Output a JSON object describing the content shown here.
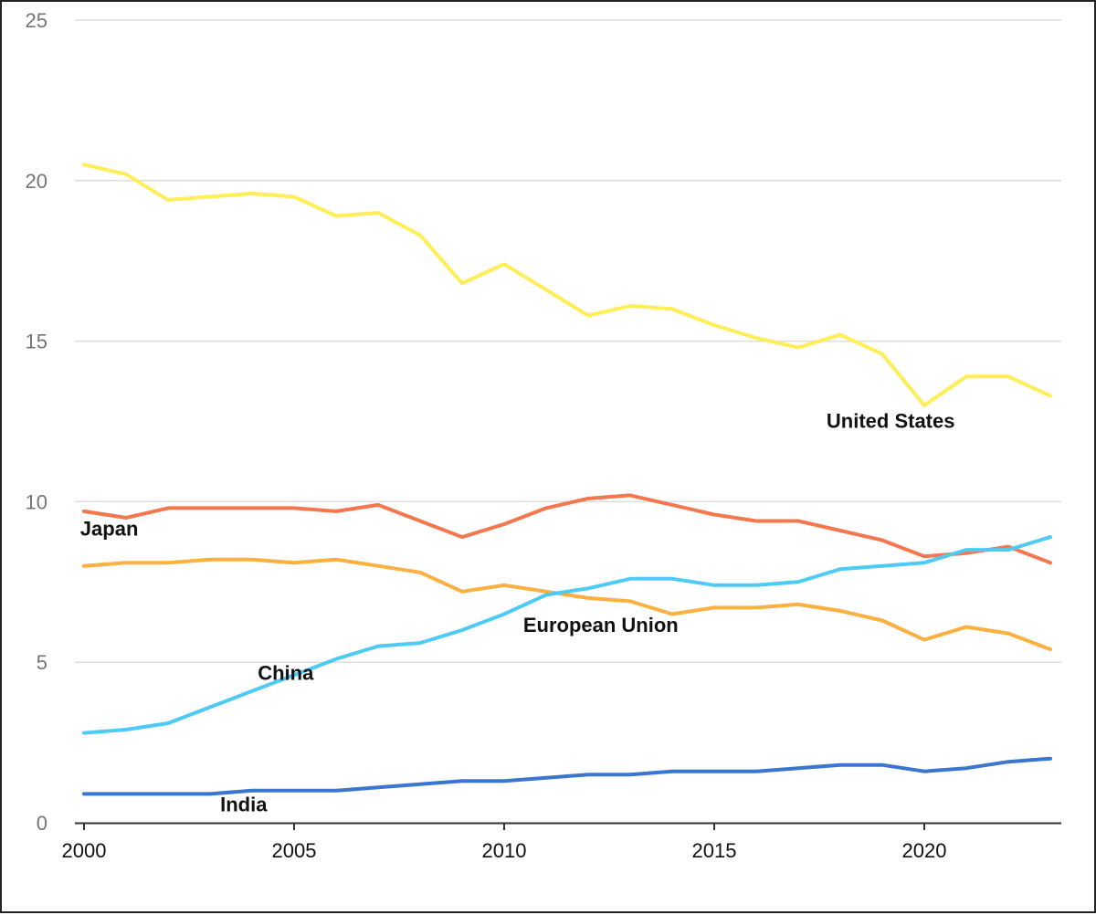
{
  "chart_data": {
    "type": "line",
    "title": "",
    "xlabel": "",
    "ylabel": "",
    "xlim": [
      2000,
      2023
    ],
    "ylim": [
      0,
      25
    ],
    "grid": true,
    "legend": "inline labels",
    "y_ticks": [
      "0",
      "5",
      "10",
      "15",
      "20",
      "25"
    ],
    "x_ticks": [
      "2000",
      "2005",
      "2010",
      "2015",
      "2020"
    ],
    "x": [
      2000,
      2001,
      2002,
      2003,
      2004,
      2005,
      2006,
      2007,
      2008,
      2009,
      2010,
      2011,
      2012,
      2013,
      2014,
      2015,
      2016,
      2017,
      2018,
      2019,
      2020,
      2021,
      2022,
      2023
    ],
    "series": [
      {
        "name": "United States",
        "color": "#ffee55",
        "values": [
          20.5,
          20.2,
          19.4,
          19.5,
          19.6,
          19.5,
          18.9,
          19.0,
          18.3,
          16.8,
          17.4,
          16.6,
          15.8,
          16.1,
          16.0,
          15.5,
          15.1,
          14.8,
          15.2,
          14.6,
          13.0,
          13.9,
          13.9,
          13.3
        ]
      },
      {
        "name": "Japan",
        "color": "#f4774e",
        "values": [
          9.7,
          9.5,
          9.8,
          9.8,
          9.8,
          9.8,
          9.7,
          9.9,
          9.4,
          8.9,
          9.3,
          9.8,
          10.1,
          10.2,
          9.9,
          9.6,
          9.4,
          9.4,
          9.1,
          8.8,
          8.3,
          8.4,
          8.6,
          8.1
        ]
      },
      {
        "name": "European Union",
        "color": "#fbb040",
        "values": [
          8.0,
          8.1,
          8.1,
          8.2,
          8.2,
          8.1,
          8.2,
          8.0,
          7.8,
          7.2,
          7.4,
          7.2,
          7.0,
          6.9,
          6.5,
          6.7,
          6.7,
          6.8,
          6.6,
          6.3,
          5.7,
          6.1,
          5.9,
          5.4
        ]
      },
      {
        "name": "China",
        "color": "#4ecbf5",
        "values": [
          2.8,
          2.9,
          3.1,
          3.6,
          4.1,
          4.6,
          5.1,
          5.5,
          5.6,
          6.0,
          6.5,
          7.1,
          7.3,
          7.6,
          7.6,
          7.4,
          7.4,
          7.5,
          7.9,
          8.0,
          8.1,
          8.5,
          8.5,
          8.9
        ]
      },
      {
        "name": "India",
        "color": "#3a75cf",
        "values": [
          0.9,
          0.9,
          0.9,
          0.9,
          1.0,
          1.0,
          1.0,
          1.1,
          1.2,
          1.3,
          1.3,
          1.4,
          1.5,
          1.5,
          1.6,
          1.6,
          1.6,
          1.7,
          1.8,
          1.8,
          1.6,
          1.7,
          1.9,
          2.0
        ]
      }
    ],
    "labels": [
      {
        "series": "United States",
        "text": "United States",
        "x": 2019.2,
        "y": 12.3
      },
      {
        "series": "Japan",
        "text": "Japan",
        "x": 2000.6,
        "y": 8.95
      },
      {
        "series": "European Union",
        "text": "European Union",
        "x": 2012.3,
        "y": 5.95
      },
      {
        "series": "China",
        "text": "China",
        "x": 2004.8,
        "y": 4.45
      },
      {
        "series": "India",
        "text": "India",
        "x": 2003.8,
        "y": 0.35
      }
    ]
  }
}
